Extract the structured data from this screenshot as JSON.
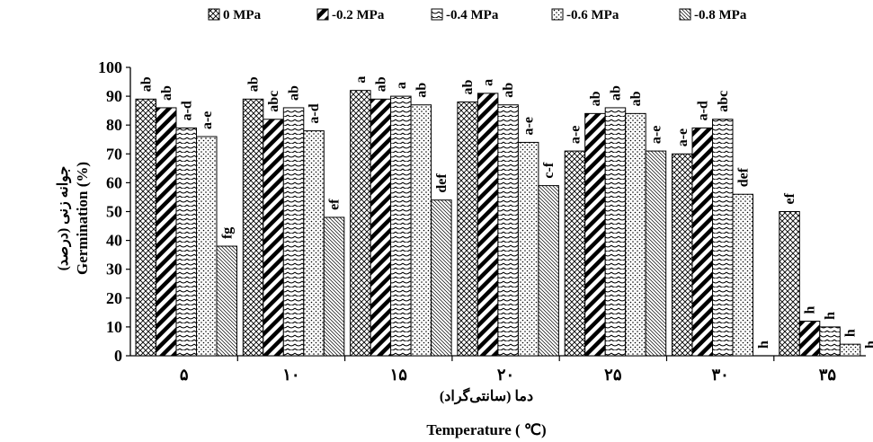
{
  "chart_data": {
    "type": "bar",
    "title": "",
    "categories": [
      "۵",
      "۱۰",
      "۱۵",
      "۲۰",
      "۲۵",
      "۳۰",
      "۳۵"
    ],
    "series": [
      {
        "name": "0 MPa",
        "pattern": "crosshatch",
        "values": [
          89,
          89,
          92,
          88,
          71,
          70,
          50
        ],
        "letters": [
          "ab",
          "ab",
          "a",
          "ab",
          "a-e",
          "a-e",
          "ef"
        ]
      },
      {
        "name": "-0.2 MPa",
        "pattern": "bold-diagonal",
        "values": [
          86,
          82,
          89,
          91,
          84,
          79,
          12
        ],
        "letters": [
          "ab",
          "abc",
          "ab",
          "a",
          "ab",
          "a-d",
          "h"
        ]
      },
      {
        "name": "-0.4 MPa",
        "pattern": "wave",
        "values": [
          79,
          86,
          90,
          87,
          86,
          82,
          10
        ],
        "letters": [
          "a-d",
          "ab",
          "a",
          "ab",
          "ab",
          "abc",
          "h"
        ]
      },
      {
        "name": "-0.6 MPa",
        "pattern": "dots",
        "values": [
          76,
          78,
          87,
          74,
          84,
          56,
          4
        ],
        "letters": [
          "a-e",
          "a-d",
          "ab",
          "a-e",
          "ab",
          "def",
          "h"
        ]
      },
      {
        "name": "-0.8 MPa",
        "pattern": "fine-diagonal",
        "values": [
          38,
          48,
          54,
          59,
          71,
          0,
          0
        ],
        "letters": [
          "fg",
          "ef",
          "def",
          "c-f",
          "a-e",
          "h",
          "h"
        ]
      }
    ],
    "ylabel_fa": "جوانه زنی (درصد)",
    "ylabel_en": "Germination (%)",
    "xlabel_fa": "دما (سانتی‌گراد)",
    "xlabel_en": "Temperature ( ℃)",
    "ylim": [
      0,
      100
    ],
    "yticks": [
      0,
      10,
      20,
      30,
      40,
      50,
      60,
      70,
      80,
      90,
      100
    ],
    "legend_position": "top",
    "grid": false
  }
}
